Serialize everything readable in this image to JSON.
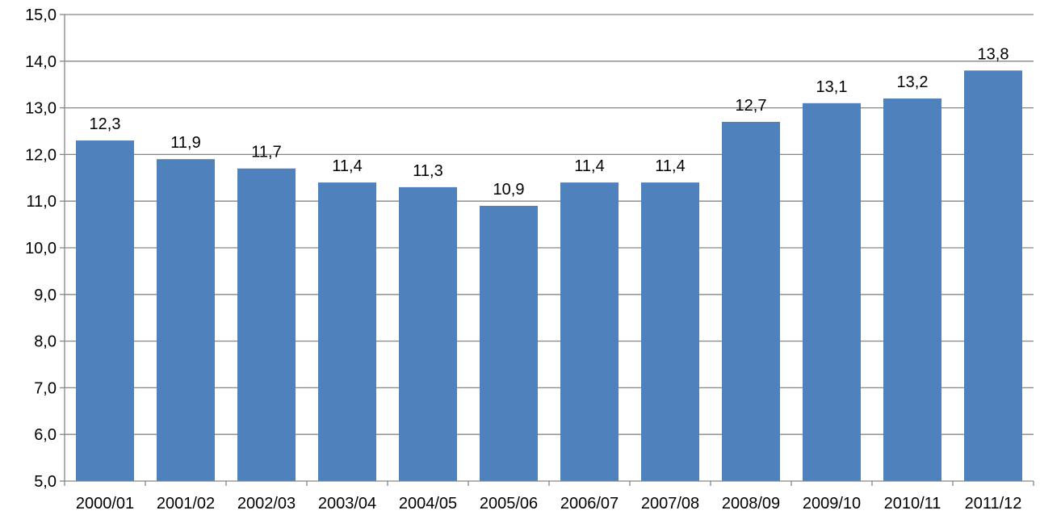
{
  "chart_data": {
    "type": "bar",
    "title": "",
    "xlabel": "",
    "ylabel": "",
    "categories": [
      "2000/01",
      "2001/02",
      "2002/03",
      "2003/04",
      "2004/05",
      "2005/06",
      "2006/07",
      "2007/08",
      "2008/09",
      "2009/10",
      "2010/11",
      "2011/12"
    ],
    "values": [
      12.3,
      11.9,
      11.7,
      11.4,
      11.3,
      10.9,
      11.4,
      11.4,
      12.7,
      13.1,
      13.2,
      13.8
    ],
    "data_labels": [
      "12,3",
      "11,9",
      "11,7",
      "11,4",
      "11,3",
      "10,9",
      "11,4",
      "11,4",
      "12,7",
      "13,1",
      "13,2",
      "13,8"
    ],
    "ylim": [
      5.0,
      15.0
    ],
    "yticks": [
      5.0,
      6.0,
      7.0,
      8.0,
      9.0,
      10.0,
      11.0,
      12.0,
      13.0,
      14.0,
      15.0
    ],
    "ytick_labels": [
      "5,0",
      "6,0",
      "7,0",
      "8,0",
      "9,0",
      "10,0",
      "11,0",
      "12,0",
      "13,0",
      "14,0",
      "15,0"
    ],
    "grid": true,
    "legend": "none",
    "colors": {
      "bar": "#4f81bd",
      "grid": "#868686",
      "axis": "#868686",
      "text": "#000000"
    }
  }
}
